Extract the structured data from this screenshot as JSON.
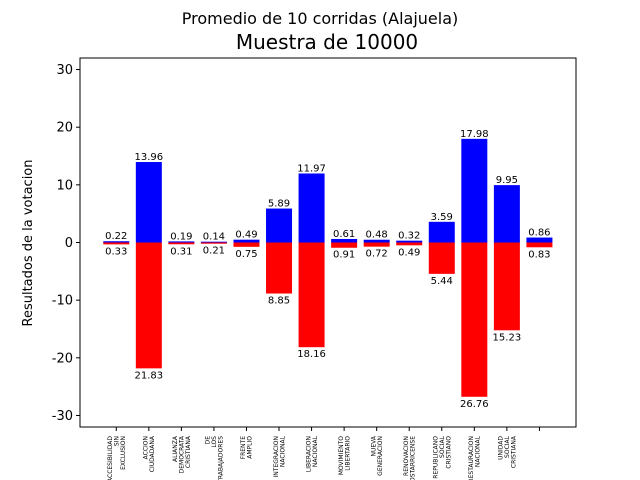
{
  "chart_data": {
    "type": "bar",
    "suptitle": "Promedio de 10 corridas (Alajuela)",
    "title": "Muestra de 10000",
    "xlabel": "",
    "ylabel": "Resultados de la votacion",
    "ylim": [
      -32,
      32
    ],
    "yticks": [
      -30,
      -20,
      -10,
      0,
      10,
      20,
      30
    ],
    "grid": false,
    "categories": [
      "ACCESIBILIDAD\nSIN\nEXCLUSION",
      "ACCION\nCIUDADANA",
      "ALIANZA\nDEMOCRATA\nCRISTIANA",
      "DE\nLOS\nTRABAJADORES",
      "FRENTE\nAMPLIO",
      "INTEGRACION\nNACIONAL",
      "LIBERACION\nNACIONAL",
      "MOVIMIENTO\nLIBERTARIO",
      "NUEVA\nGENERACION",
      "RENOVACION\nCOSTARRICENSE",
      "REPUBLICANO\nSOCIAL\nCRISTIANO",
      "RESTAURACION\nNACIONAL",
      "UNIDAD\nSOCIAL\nCRISTIANA",
      ""
    ],
    "series": [
      {
        "color": "#0000ff",
        "values": [
          0.22,
          13.96,
          0.19,
          0.14,
          0.49,
          5.89,
          11.97,
          0.61,
          0.48,
          0.32,
          3.59,
          17.98,
          9.95,
          0.86
        ],
        "labels": [
          "0.22",
          "13.96",
          "0.19",
          "0.14",
          "0.49",
          "5.89",
          "11.97",
          "0.61",
          "0.48",
          "0.32",
          "3.59",
          "17.98",
          "9.95",
          "0.86"
        ]
      },
      {
        "color": "#ff0000",
        "values": [
          -0.33,
          -21.83,
          -0.31,
          -0.21,
          -0.75,
          -8.85,
          -18.16,
          -0.91,
          -0.72,
          -0.49,
          -5.44,
          -26.76,
          -15.23,
          -0.83
        ],
        "labels": [
          "0.33",
          "21.83",
          "0.31",
          "0.21",
          "0.75",
          "8.85",
          "18.16",
          "0.91",
          "0.72",
          "0.49",
          "5.44",
          "26.76",
          "15.23",
          "0.83"
        ]
      }
    ]
  }
}
